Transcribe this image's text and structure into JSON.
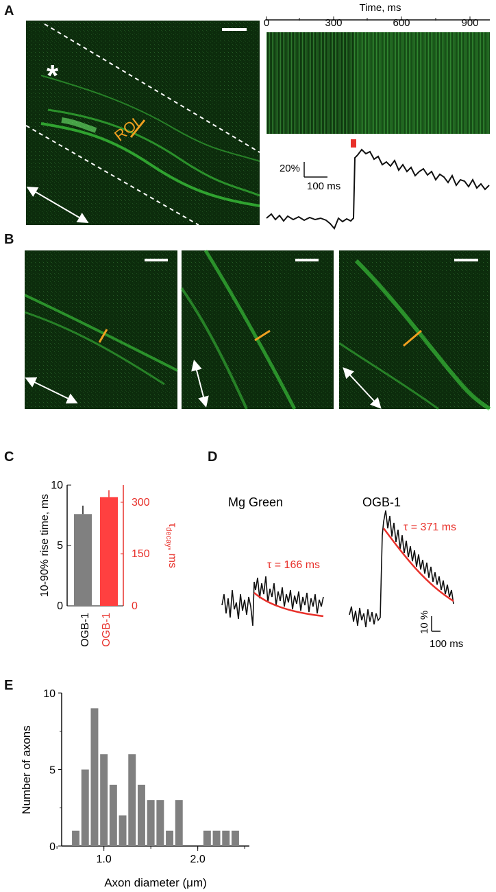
{
  "panel_letters": {
    "A": "A",
    "B": "B",
    "C": "C",
    "D": "D",
    "E": "E"
  },
  "colors": {
    "micro_bg": "#0b2a0b",
    "axon": "#3fd43f",
    "roi": "#f0a020",
    "red": "#e8302a",
    "bar_gray": "#808080",
    "bar_red": "#ff4040",
    "trace": "#111111"
  },
  "panel_a": {
    "asterisk": "*",
    "roi_label": "ROI",
    "time_axis_title": "Time, ms",
    "time_ticks": [
      "0",
      "300",
      "600",
      "900"
    ],
    "scale_y_label": "20%",
    "scale_x_label": "100 ms"
  },
  "panel_c": {
    "left_axis_label": "10-90% rise time, ms",
    "left_ticks": [
      "0",
      "5",
      "10"
    ],
    "right_axis_label_tau": "τ",
    "right_axis_label_sub": "decay",
    "right_axis_label_unit": ", ms",
    "right_ticks": [
      "0",
      "150",
      "300"
    ],
    "categories": [
      "OGB-1",
      "OGB-1"
    ]
  },
  "panel_d": {
    "title_left": "Mg Green",
    "title_right": "OGB-1",
    "tau_left": "τ = 166 ms",
    "tau_right": "τ = 371 ms",
    "scale_y_label": "10 %",
    "scale_x_label": "100 ms"
  },
  "chart_data": [
    {
      "type": "bar",
      "panel": "C",
      "categories": [
        "OGB-1",
        "OGB-1"
      ],
      "series": [
        {
          "values": [
            7.6,
            null
          ]
        },
        {
          "values": [
            null,
            315
          ]
        }
      ],
      "xlabel": "",
      "ylabel": "10-90% rise time, ms",
      "ylabel_right": "τ decay, ms",
      "ylim": [
        0,
        10
      ],
      "ylim_right": [
        0,
        350
      ],
      "error_bars": [
        0.7,
        20
      ]
    },
    {
      "type": "bar",
      "panel": "E",
      "x": [
        0.7,
        0.8,
        0.9,
        1.0,
        1.1,
        1.2,
        1.3,
        1.4,
        1.5,
        1.6,
        1.7,
        1.8,
        1.9,
        2.0,
        2.1,
        2.2,
        2.3,
        2.4
      ],
      "values": [
        1,
        5,
        9,
        6,
        4,
        2,
        6,
        4,
        3,
        3,
        1,
        3,
        0,
        0,
        1,
        1,
        1,
        1
      ],
      "xlabel": "Axon diameter (μm)",
      "ylabel": "Number of axons",
      "xticks": [
        "1.0",
        "2.0"
      ],
      "yticks": [
        "0",
        "5",
        "10"
      ],
      "xlim": [
        0.55,
        2.55
      ],
      "ylim": [
        0,
        10
      ]
    }
  ]
}
